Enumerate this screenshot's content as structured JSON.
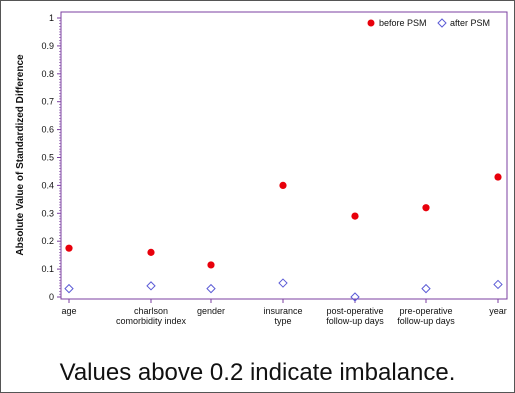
{
  "chart_data": {
    "type": "scatter",
    "ylabel": "Absolute Value of Standardized Difference",
    "xlabel": "",
    "ylim": [
      0,
      1
    ],
    "yticks": [
      "0",
      "0.1",
      "0.2",
      "0.3",
      "0.4",
      "0.5",
      "0.6",
      "0.7",
      "0.8",
      "0.9",
      "1"
    ],
    "categories": [
      [
        "age"
      ],
      [
        "charlson",
        "comorbidity index"
      ],
      [
        "gender"
      ],
      [
        "insurance",
        "type"
      ],
      [
        "post-operative",
        "follow-up days"
      ],
      [
        "pre-operative",
        "follow-up days"
      ],
      [
        "year"
      ]
    ],
    "series": [
      {
        "name": "before PSM",
        "marker": "filled-circle",
        "color": "#e8000b",
        "values": [
          0.175,
          0.16,
          0.115,
          0.4,
          0.29,
          0.32,
          0.43
        ]
      },
      {
        "name": "after PSM",
        "marker": "open-diamond",
        "color": "#5b5bd6",
        "values": [
          0.03,
          0.04,
          0.03,
          0.05,
          0.0,
          0.03,
          0.045
        ]
      }
    ],
    "legend_position": "top-right",
    "grid": false,
    "frame_color": "#7b3fa0"
  },
  "caption": "Values above 0.2 indicate imbalance."
}
